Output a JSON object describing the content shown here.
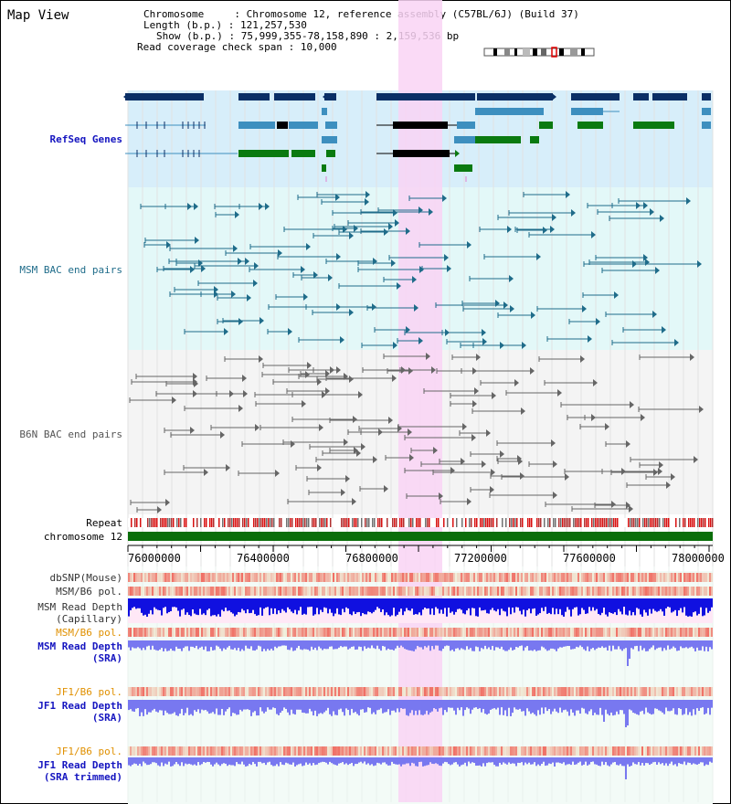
{
  "view_title": "Map View",
  "info": {
    "chromosome_key": "Chromosome",
    "chromosome_value": "Chromosome 12, reference assembly (C57BL/6J) (Build 37)",
    "length_key": "Length (b.p.)",
    "length_value": "121,257,530",
    "show_key": "Show (b.p.)",
    "show_value": "75,999,355-78,158,890 : 2,159,536 bp",
    "coverage_key": "Read coverage check span",
    "coverage_value": "10,000"
  },
  "tracks": {
    "refseq": "RefSeq Genes",
    "msm_bac": "MSM BAC end pairs",
    "b6n_bac": "B6N BAC end pairs",
    "repeat": "Repeat",
    "chromosome": "chromosome 12",
    "dbsnp": "dbSNP(Mouse)",
    "msm_b6_pol_1": "MSM/B6 pol.",
    "msm_depth_cap_1": "MSM Read Depth",
    "msm_depth_cap_2": "(Capillary)",
    "msm_b6_pol_2": "MSM/B6 pol.",
    "msm_depth_sra_1": "MSM Read Depth",
    "msm_depth_sra_2": "(SRA)",
    "jf1_b6_pol_1": "JF1/B6 pol.",
    "jf1_depth_sra_1": "JF1 Read Depth",
    "jf1_depth_sra_2": "(SRA)",
    "jf1_b6_pol_2": "JF1/B6 pol.",
    "jf1_depth_trim_1": "JF1 Read Depth",
    "jf1_depth_trim_2": "(SRA trimmed)"
  },
  "axis": {
    "ticks": [
      "76000000",
      "76400000",
      "76800000",
      "77200000",
      "77600000",
      "78000000"
    ]
  },
  "colors": {
    "highlight": "#f9d4f4",
    "refseq_bg": "#d7eefa",
    "msm_bg": "#e3f8f8",
    "b6n_bg": "#f4f4f4",
    "navy": "#0b2f66",
    "blue_gene": "#3d8fbf",
    "green_gene": "#0a7a10",
    "msm_pair": "#1f6c8a",
    "b6n_pair": "#666666",
    "chromosome_bar": "#0a6e0a",
    "depth_blue": "#1010e0",
    "depth_light": "#7878f0",
    "label_blue": "#1515c0",
    "label_orange": "#e09000"
  }
}
